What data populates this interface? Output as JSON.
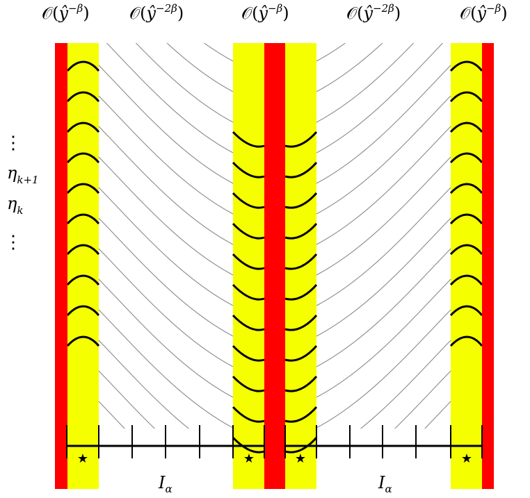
{
  "top_labels": [
    {
      "prefix": "𝒪(",
      "var": "ŷ",
      "exp": "−β",
      "suffix": ")"
    },
    {
      "prefix": "𝒪(",
      "var": "ŷ",
      "exp": "−2β",
      "suffix": ")"
    },
    {
      "prefix": "𝒪(",
      "var": "ŷ",
      "exp": "−β",
      "suffix": ")"
    },
    {
      "prefix": "𝒪(",
      "var": "ŷ",
      "exp": "−2β",
      "suffix": ")"
    },
    {
      "prefix": "𝒪(",
      "var": "ŷ",
      "exp": "−β",
      "suffix": ")"
    }
  ],
  "left_labels": {
    "dots_top": "⋮",
    "eta_k1": {
      "base": "η",
      "sub": "k+1"
    },
    "eta_k": {
      "base": "η",
      "sub": "k"
    },
    "dots_bottom": "⋮"
  },
  "interval_labels": [
    {
      "base": "I",
      "sub": "α"
    },
    {
      "base": "I",
      "sub": "α"
    }
  ],
  "star_glyph": "★",
  "colors": {
    "boundary": "#ff0000",
    "band": "#f5ff00",
    "thin_curve": "#8a8a8a",
    "thick_curve": "#000000",
    "axis": "#000000"
  }
}
